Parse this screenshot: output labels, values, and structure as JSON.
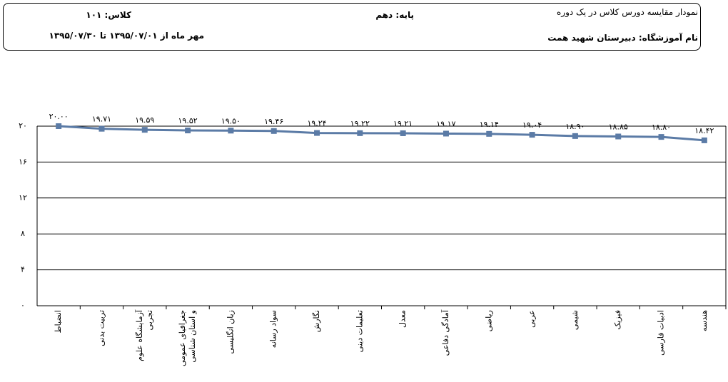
{
  "header": {
    "title": "نمودار مقایسه دورس کلاس  در یک دوره",
    "grade": "پایه:  دهم",
    "class": "کلاس: ۱۰۱",
    "school": "نام آموزشگاه:  دبیرستان شهید همت",
    "period": "مهر ماه  از ۱۳۹۵/۰۷/۰۱ تا ۱۳۹۵/۰۷/۳۰"
  },
  "chart_data": {
    "type": "line",
    "categories": [
      "انضباط",
      "تربیت بدنی",
      "آزمایشگاه علوم\nتجربی",
      "جغرافیای عمومی\nو استان شناسی",
      "زبان انگلیسی",
      "سواد رسانه",
      "نگارش",
      "تعلیمات دینی",
      "معدل",
      "آمادگی دفاعی",
      "ریاضی",
      "عربی",
      "شیمی",
      "فیزیک",
      "ادبیات فارسی",
      "هندسه"
    ],
    "values": [
      20.0,
      19.71,
      19.59,
      19.52,
      19.5,
      19.46,
      19.24,
      19.22,
      19.21,
      19.17,
      19.14,
      19.04,
      18.9,
      18.85,
      18.8,
      18.42
    ],
    "value_labels": [
      "۲۰.۰۰",
      "۱۹.۷۱",
      "۱۹.۵۹",
      "۱۹.۵۲",
      "۱۹.۵۰",
      "۱۹.۴۶",
      "۱۹.۲۴",
      "۱۹.۲۲",
      "۱۹.۲۱",
      "۱۹.۱۷",
      "۱۹.۱۴",
      "۱۹.۰۴",
      "۱۸.۹۰",
      "۱۸.۸۵",
      "۱۸.۸۰",
      "۱۸.۴۲"
    ],
    "color": "#5b7ba6",
    "ylim": [
      0,
      20
    ],
    "yticks": [
      {
        "value": 0,
        "label": "۰"
      },
      {
        "value": 4,
        "label": "۴"
      },
      {
        "value": 8,
        "label": "۸"
      },
      {
        "value": 12,
        "label": "۱۲"
      },
      {
        "value": 16,
        "label": "۱۶"
      },
      {
        "value": 20,
        "label": "۲۰"
      }
    ],
    "grid": true
  }
}
